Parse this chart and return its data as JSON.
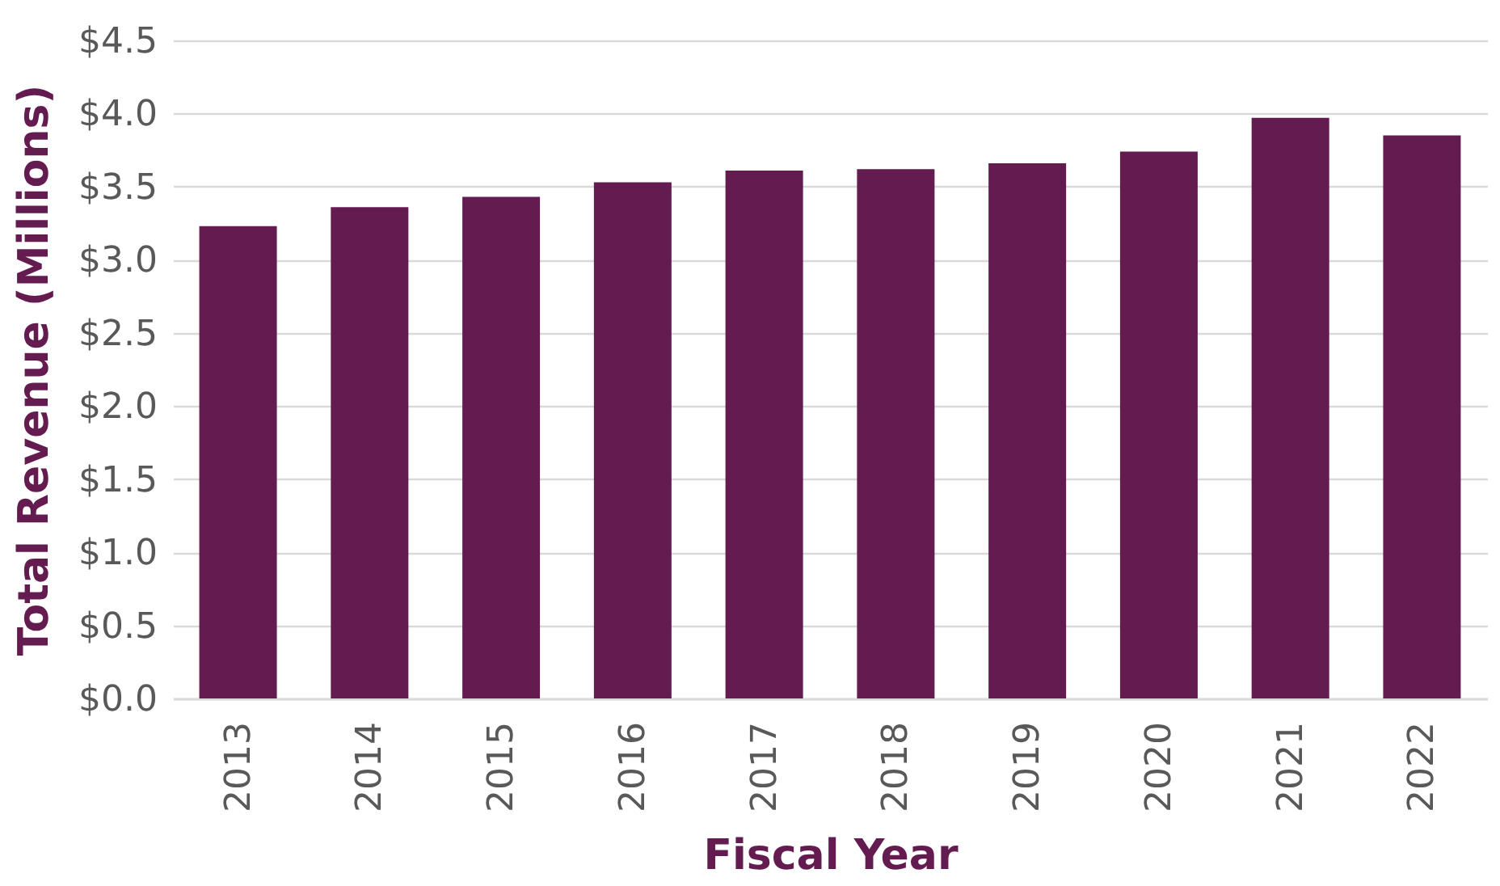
{
  "chart_data": {
    "type": "bar",
    "xlabel": "Fiscal Year",
    "ylabel": "Total Revenue (Millions)",
    "categories": [
      "2013",
      "2014",
      "2015",
      "2016",
      "2017",
      "2018",
      "2019",
      "2020",
      "2021",
      "2022"
    ],
    "values": [
      3.23,
      3.36,
      3.43,
      3.53,
      3.61,
      3.62,
      3.66,
      3.74,
      3.97,
      3.85
    ],
    "color": "#641c50",
    "ylim": [
      0,
      4.5
    ],
    "yticks": [
      {
        "value": 0,
        "label": "$0.0"
      },
      {
        "value": 0.5,
        "label": "$0.5"
      },
      {
        "value": 1,
        "label": "$1.0"
      },
      {
        "value": 1.5,
        "label": "$1.5"
      },
      {
        "value": 2,
        "label": "$2.0"
      },
      {
        "value": 2.5,
        "label": "$2.5"
      },
      {
        "value": 3,
        "label": "$3.0"
      },
      {
        "value": 3.5,
        "label": "$3.5"
      },
      {
        "value": 4,
        "label": "$4.0"
      },
      {
        "value": 4.5,
        "label": "$4.5"
      }
    ],
    "grid": "y"
  }
}
